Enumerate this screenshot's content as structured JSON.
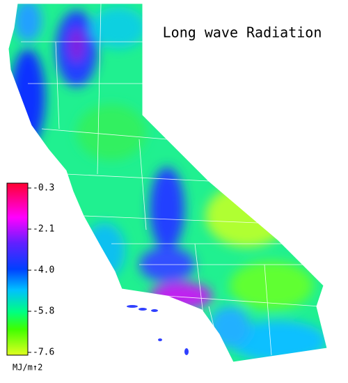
{
  "title": "Long wave Radiation",
  "colorbar": {
    "ticks": [
      "-0.3",
      "-2.1",
      "-4.0",
      "-5.8",
      "-7.6"
    ],
    "unit": "MJ/m↑2"
  }
}
